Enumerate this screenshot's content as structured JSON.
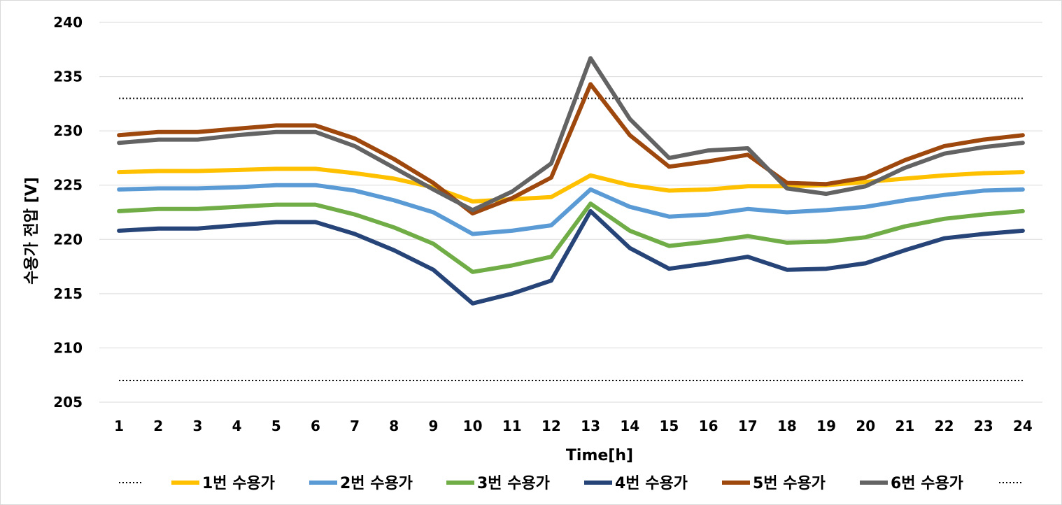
{
  "chart_data": {
    "type": "line",
    "xlabel": "Time[h]",
    "ylabel": "수용가 전압 [V]",
    "ylim": [
      205,
      240
    ],
    "yticks": [
      205,
      210,
      215,
      220,
      225,
      230,
      235,
      240
    ],
    "grid": true,
    "legend_position": "bottom",
    "categories": [
      "1",
      "2",
      "3",
      "4",
      "5",
      "6",
      "7",
      "8",
      "9",
      "10",
      "11",
      "12",
      "13",
      "14",
      "15",
      "16",
      "17",
      "18",
      "19",
      "20",
      "21",
      "22",
      "23",
      "24"
    ],
    "reference_lines": [
      {
        "value": 233,
        "style": "dotted",
        "color": "#000000"
      },
      {
        "value": 207,
        "style": "dotted",
        "color": "#000000"
      }
    ],
    "series": [
      {
        "name": "1번 수용가",
        "color": "#FFC000",
        "values": [
          226.2,
          226.3,
          226.3,
          226.4,
          226.5,
          226.5,
          226.1,
          225.6,
          224.8,
          223.5,
          223.7,
          223.9,
          225.9,
          225.0,
          224.5,
          224.6,
          224.9,
          224.9,
          225.0,
          225.3,
          225.6,
          225.9,
          226.1,
          226.2
        ]
      },
      {
        "name": "2번 수용가",
        "color": "#5B9BD5",
        "values": [
          224.6,
          224.7,
          224.7,
          224.8,
          225.0,
          225.0,
          224.5,
          223.6,
          222.5,
          220.5,
          220.8,
          221.3,
          224.6,
          223.0,
          222.1,
          222.3,
          222.8,
          222.5,
          222.7,
          223.0,
          223.6,
          224.1,
          224.5,
          224.6
        ]
      },
      {
        "name": "3번 수용가",
        "color": "#70AD47",
        "values": [
          222.6,
          222.8,
          222.8,
          223.0,
          223.2,
          223.2,
          222.3,
          221.1,
          219.6,
          217.0,
          217.6,
          218.4,
          223.3,
          220.8,
          219.4,
          219.8,
          220.3,
          219.7,
          219.8,
          220.2,
          221.2,
          221.9,
          222.3,
          222.6
        ]
      },
      {
        "name": "4번 수용가",
        "color": "#264478",
        "values": [
          220.8,
          221.0,
          221.0,
          221.3,
          221.6,
          221.6,
          220.5,
          219.0,
          217.2,
          214.1,
          215.0,
          216.2,
          222.6,
          219.2,
          217.3,
          217.8,
          218.4,
          217.2,
          217.3,
          217.8,
          219.0,
          220.1,
          220.5,
          220.8
        ]
      },
      {
        "name": "5번 수용가",
        "color": "#9E480E",
        "values": [
          229.6,
          229.9,
          229.9,
          230.2,
          230.5,
          230.5,
          229.3,
          227.4,
          225.2,
          222.4,
          223.8,
          225.7,
          234.3,
          229.6,
          226.7,
          227.2,
          227.8,
          225.2,
          225.1,
          225.7,
          227.3,
          228.6,
          229.2,
          229.6
        ]
      },
      {
        "name": "6번 수용가",
        "color": "#636363",
        "values": [
          228.9,
          229.2,
          229.2,
          229.6,
          229.9,
          229.9,
          228.6,
          226.6,
          224.6,
          222.7,
          224.4,
          227.0,
          236.7,
          231.1,
          227.5,
          228.2,
          228.4,
          224.7,
          224.2,
          224.9,
          226.6,
          227.9,
          228.5,
          228.9
        ]
      }
    ]
  }
}
